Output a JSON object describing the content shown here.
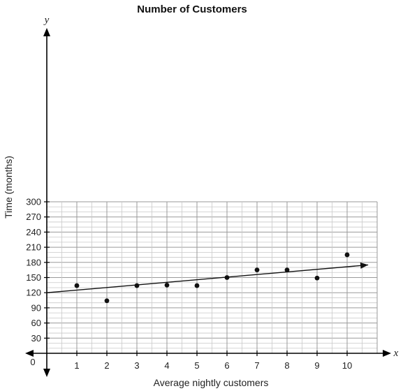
{
  "chart_data": {
    "type": "scatter",
    "title": "Number of Customers",
    "xlabel": "Average nightly customers",
    "ylabel": "Time (months)",
    "x_var": "x",
    "y_var": "y",
    "origin_label": "0",
    "xlim": [
      0,
      11
    ],
    "ylim": [
      0,
      300
    ],
    "x_ticks": [
      1,
      2,
      3,
      4,
      5,
      6,
      7,
      8,
      9,
      10
    ],
    "y_ticks": [
      30,
      60,
      90,
      120,
      150,
      180,
      210,
      240,
      270,
      300
    ],
    "points": [
      {
        "x": 1,
        "y": 134
      },
      {
        "x": 2,
        "y": 104
      },
      {
        "x": 3,
        "y": 134
      },
      {
        "x": 4,
        "y": 135
      },
      {
        "x": 5,
        "y": 134
      },
      {
        "x": 6,
        "y": 150
      },
      {
        "x": 7,
        "y": 165
      },
      {
        "x": 8,
        "y": 165
      },
      {
        "x": 9,
        "y": 149
      },
      {
        "x": 10,
        "y": 195
      }
    ],
    "trend_line": {
      "x_start": 0,
      "y_start": 120,
      "x_end": 10.7,
      "y_end": 175
    },
    "grid": true
  }
}
